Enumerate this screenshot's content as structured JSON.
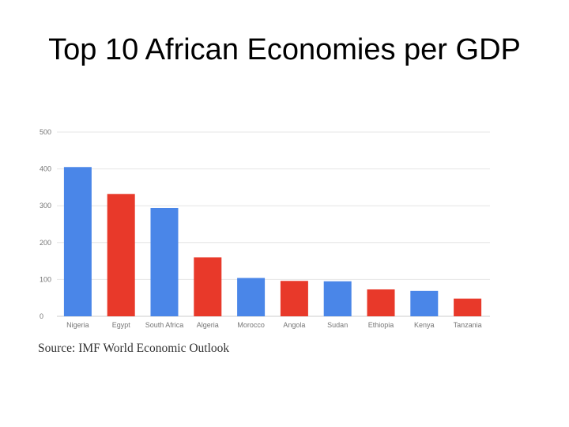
{
  "slide": {
    "title": "Top 10 African Economies per GDP",
    "source": "Source: IMF World Economic Outlook"
  },
  "colors": {
    "blue": "#4a86e8",
    "red": "#e8392a",
    "grid": "#e6e6e6",
    "tick": "#757575"
  },
  "chart_data": {
    "type": "bar",
    "title": "Top 10 African Economies per GDP",
    "xlabel": "",
    "ylabel": "",
    "ylim": [
      0,
      500
    ],
    "yticks": [
      0,
      100,
      200,
      300,
      400,
      500
    ],
    "grid": true,
    "legend": "none",
    "categories": [
      "Nigeria",
      "Egypt",
      "South Africa",
      "Algeria",
      "Morocco",
      "Angola",
      "Sudan",
      "Ethiopia",
      "Kenya",
      "Tanzania"
    ],
    "values": [
      405,
      332,
      294,
      160,
      104,
      96,
      95,
      73,
      69,
      48
    ],
    "bar_colors": [
      "blue",
      "red",
      "blue",
      "red",
      "blue",
      "red",
      "blue",
      "red",
      "blue",
      "red"
    ]
  }
}
